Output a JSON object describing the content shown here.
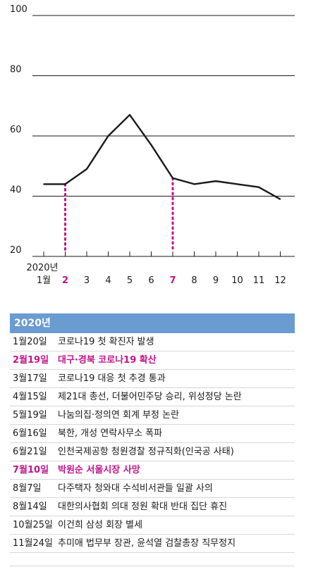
{
  "chart_data": {
    "type": "line",
    "x_year_label": "2020년",
    "categories": [
      "1월",
      "2",
      "3",
      "4",
      "5",
      "6",
      "7",
      "8",
      "9",
      "10",
      "11",
      "12"
    ],
    "highlight_categories": [
      "2",
      "7"
    ],
    "values": [
      44,
      44,
      49,
      60,
      67,
      57,
      46,
      44,
      45,
      44,
      43,
      39
    ],
    "yticks": [
      20,
      40,
      60,
      80,
      100
    ],
    "ylim": [
      20,
      100
    ],
    "grid": "horizontal",
    "colors": {
      "line": "#1a1a1a",
      "highlight": "#c4128a",
      "grid": "#1a1a1a"
    }
  },
  "timeline": {
    "header": "2020년",
    "rows": [
      {
        "date": "1월20일",
        "event": "코로나19 첫 확진자 발생",
        "highlight": false
      },
      {
        "date": "2월19일",
        "event": "대구·경북 코로나19 확산",
        "highlight": true
      },
      {
        "date": "3월17일",
        "event": "코로나19 대응 첫 추경 통과",
        "highlight": false
      },
      {
        "date": "4월15일",
        "event": "제21대 총선, 더불어민주당 승리, 위성정당 논란",
        "highlight": false
      },
      {
        "date": "5월19일",
        "event": "나눔의집·정의연 회계 부정 논란",
        "highlight": false
      },
      {
        "date": "6월16일",
        "event": "북한, 개성 연락사무소 폭파",
        "highlight": false
      },
      {
        "date": "6월21일",
        "event": "인천국제공항 청원경찰 정규직화(인국공 사태)",
        "highlight": false
      },
      {
        "date": "7월10일",
        "event": "박원순 서울시장 사망",
        "highlight": true
      },
      {
        "date": "8월7일",
        "event": "다주택자 청와대 수석비서관들 일괄 사의",
        "highlight": false
      },
      {
        "date": "8월14일",
        "event": "대한의사협회 의대 정원 확대 반대 집단 휴진",
        "highlight": false
      },
      {
        "date": "10월25일",
        "event": "이건희 삼성 회장 별세",
        "highlight": false
      },
      {
        "date": "11월24일",
        "event": "추미애 법무부 장관, 윤석열 검찰총장 직무정지",
        "highlight": false
      }
    ]
  }
}
